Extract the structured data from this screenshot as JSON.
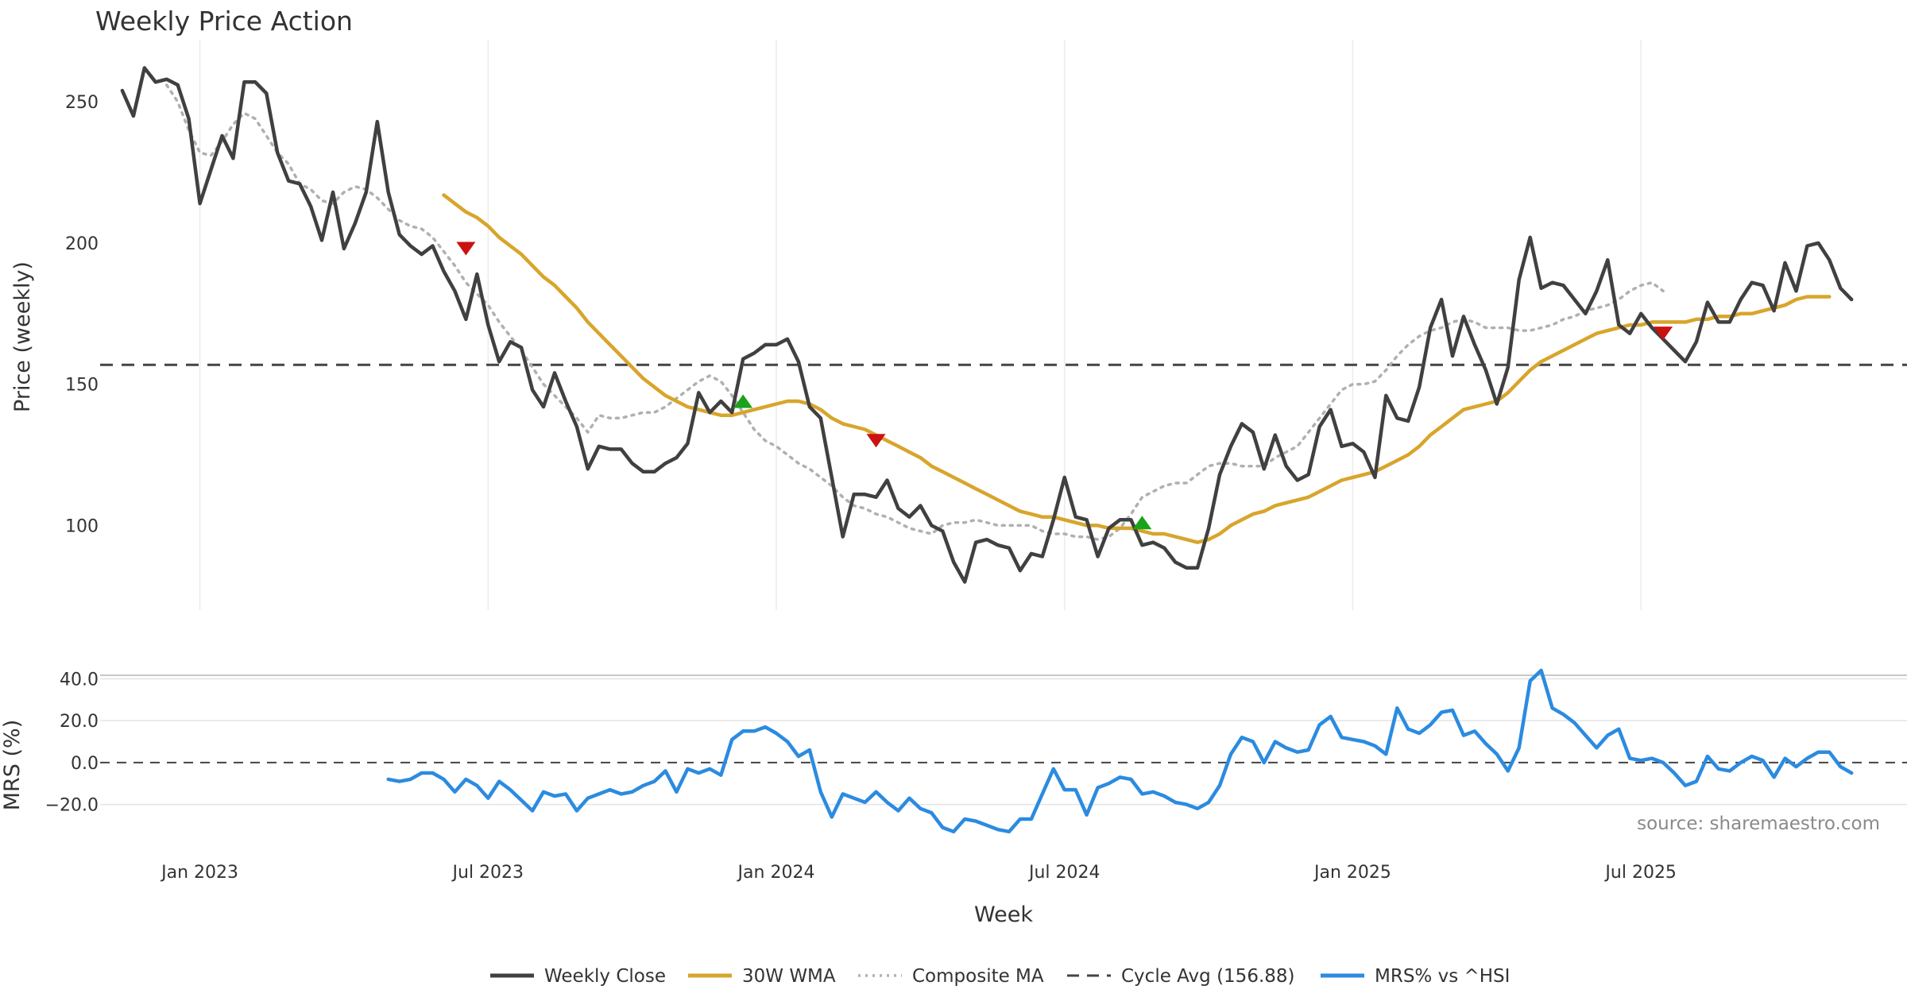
{
  "chart_data": {
    "type": "line",
    "title": "Weekly Price Action",
    "xlabel": "Week",
    "source": "source: sharemaestro.com",
    "x_ticks": [
      "Jan 2023",
      "Jul 2023",
      "Jan 2024",
      "Jul 2024",
      "Jan 2025",
      "Jul 2025"
    ],
    "x_tick_weeks": [
      7,
      33,
      59,
      85,
      111,
      137
    ],
    "x_range": [
      -2,
      161
    ],
    "price_panel": {
      "ylabel": "Price (weekly)",
      "y_ticks": [
        100,
        150,
        200,
        250
      ],
      "ylim": [
        70,
        272
      ],
      "series": [
        {
          "name": "Weekly Close",
          "color": "#404040",
          "style": "solid",
          "start_week": 0,
          "values": [
            254,
            245,
            262,
            257,
            258,
            256,
            244,
            214,
            226,
            238,
            230,
            257,
            257,
            253,
            232,
            222,
            221,
            213,
            201,
            218,
            198,
            207,
            218,
            243,
            218,
            203,
            199,
            196,
            199,
            190,
            183,
            173,
            189,
            171,
            158,
            165,
            163,
            148,
            142,
            154,
            144,
            135,
            120,
            128,
            127,
            127,
            122,
            119,
            119,
            122,
            124,
            129,
            147,
            140,
            144,
            140,
            159,
            161,
            164,
            164,
            166,
            158,
            142,
            138,
            117,
            96,
            111,
            111,
            110,
            116,
            106,
            103,
            107,
            100,
            98,
            87,
            80,
            94,
            95,
            93,
            92,
            84,
            90,
            89,
            102,
            117,
            103,
            102,
            89,
            99,
            102,
            102,
            93,
            94,
            92,
            87,
            85,
            85,
            99,
            118,
            128,
            136,
            133,
            120,
            132,
            121,
            116,
            118,
            135,
            141,
            128,
            129,
            126,
            117,
            146,
            138,
            137,
            149,
            170,
            180,
            160,
            174,
            164,
            155,
            143,
            156,
            187,
            202,
            184,
            186,
            185,
            180,
            175,
            183,
            194,
            171,
            168,
            175,
            170,
            166,
            162,
            158,
            165,
            179,
            172,
            172,
            180,
            186,
            185,
            176,
            193,
            183,
            199,
            200,
            194,
            184,
            180
          ]
        },
        {
          "name": "30W WMA",
          "color": "#d8a52c",
          "style": "solid",
          "start_week": 29,
          "values": [
            217,
            214,
            211,
            209,
            206,
            202,
            199,
            196,
            192,
            188,
            185,
            181,
            177,
            172,
            168,
            164,
            160,
            156,
            152,
            149,
            146,
            144,
            142,
            141,
            140,
            139,
            139,
            140,
            141,
            142,
            143,
            144,
            144,
            143,
            141,
            138,
            136,
            135,
            134,
            132,
            130,
            128,
            126,
            124,
            121,
            119,
            117,
            115,
            113,
            111,
            109,
            107,
            105,
            104,
            103,
            103,
            102,
            101,
            100,
            100,
            99,
            99,
            99,
            98,
            97,
            97,
            96,
            95,
            94,
            95,
            97,
            100,
            102,
            104,
            105,
            107,
            108,
            109,
            110,
            112,
            114,
            116,
            117,
            118,
            119,
            121,
            123,
            125,
            128,
            132,
            135,
            138,
            141,
            142,
            143,
            144,
            147,
            151,
            155,
            158,
            160,
            162,
            164,
            166,
            168,
            169,
            170,
            171,
            171,
            172,
            172,
            172,
            172,
            173,
            173,
            174,
            174,
            175,
            175,
            176,
            177,
            178,
            180,
            181,
            181,
            181
          ]
        },
        {
          "name": "Composite MA",
          "color": "#b0b0b0",
          "style": "dotted",
          "start_week": 4,
          "values": [
            256,
            250,
            240,
            232,
            231,
            236,
            242,
            246,
            244,
            238,
            232,
            228,
            221,
            219,
            215,
            214,
            218,
            220,
            219,
            216,
            212,
            208,
            206,
            205,
            202,
            197,
            192,
            186,
            182,
            178,
            172,
            167,
            162,
            156,
            150,
            146,
            142,
            138,
            133,
            139,
            138,
            138,
            139,
            140,
            140,
            142,
            145,
            148,
            151,
            153,
            151,
            146,
            140,
            134,
            130,
            128,
            125,
            122,
            120,
            117,
            114,
            110,
            107,
            106,
            104,
            103,
            101,
            99,
            98,
            97,
            100,
            101,
            101,
            102,
            101,
            100,
            100,
            100,
            100,
            98,
            97,
            97,
            96,
            96,
            95,
            96,
            99,
            104,
            110,
            112,
            114,
            115,
            115,
            118,
            121,
            122,
            122,
            121,
            121,
            121,
            124,
            126,
            128,
            133,
            138,
            143,
            148,
            150,
            150,
            151,
            155,
            160,
            164,
            167,
            169,
            170,
            172,
            173,
            172,
            170,
            170,
            170,
            169,
            169,
            170,
            171,
            173,
            174,
            176,
            177,
            178,
            180,
            183,
            185,
            186,
            183
          ]
        },
        {
          "name": "Cycle Avg (156.88)",
          "color": "#444444",
          "style": "dashed",
          "constant": 156.88
        }
      ],
      "markers": [
        {
          "type": "sell",
          "symbol": "down-triangle",
          "color": "#cc1111",
          "week": 31,
          "value": 198
        },
        {
          "type": "buy",
          "symbol": "up-triangle",
          "color": "#1aa31a",
          "week": 56,
          "value": 144
        },
        {
          "type": "sell",
          "symbol": "down-triangle",
          "color": "#cc1111",
          "week": 68,
          "value": 130
        },
        {
          "type": "buy",
          "symbol": "up-triangle",
          "color": "#1aa31a",
          "week": 92,
          "value": 101
        },
        {
          "type": "sell",
          "symbol": "down-triangle",
          "color": "#cc1111",
          "week": 139,
          "value": 168
        }
      ]
    },
    "mrs_panel": {
      "ylabel": "MRS (%)",
      "y_ticks": [
        -20.0,
        0.0,
        20.0,
        40.0
      ],
      "y_tick_labels": [
        "−20.0",
        "0.0",
        "20.0",
        "40.0"
      ],
      "ylim": [
        -38,
        47
      ],
      "series": [
        {
          "name": "MRS% vs ^HSI",
          "color": "#2b8be0",
          "style": "solid",
          "start_week": 24,
          "values": [
            -8,
            -9,
            -8,
            -5,
            -5,
            -8,
            -14,
            -8,
            -11,
            -17,
            -9,
            -13,
            -18,
            -23,
            -14,
            -16,
            -15,
            -23,
            -17,
            -15,
            -13,
            -15,
            -14,
            -11,
            -9,
            -4,
            -14,
            -3,
            -5,
            -3,
            -6,
            11,
            15,
            15,
            17,
            14,
            10,
            3,
            6,
            -14,
            -26,
            -15,
            -17,
            -19,
            -14,
            -19,
            -23,
            -17,
            -22,
            -24,
            -31,
            -33,
            -27,
            -28,
            -30,
            -32,
            -33,
            -27,
            -27,
            -15,
            -3,
            -13,
            -13,
            -25,
            -12,
            -10,
            -7,
            -8,
            -15,
            -14,
            -16,
            -19,
            -20,
            -22,
            -19,
            -11,
            4,
            12,
            10,
            0,
            10,
            7,
            5,
            6,
            18,
            22,
            12,
            11,
            10,
            8,
            4,
            26,
            16,
            14,
            18,
            24,
            25,
            13,
            15,
            9,
            4,
            -4,
            7,
            39,
            44,
            26,
            23,
            19,
            13,
            7,
            13,
            16,
            2,
            1,
            2,
            0,
            -5,
            -11,
            -9,
            3,
            -3,
            -4,
            0,
            3,
            1,
            -7,
            2,
            -2,
            2,
            5,
            5,
            -2,
            -5
          ]
        },
        {
          "name": "zero-line",
          "color": "#444444",
          "style": "dashed",
          "constant": 0
        }
      ]
    },
    "legend": [
      {
        "label": "Weekly Close",
        "color": "#404040",
        "style": "solid"
      },
      {
        "label": "30W WMA",
        "color": "#d8a52c",
        "style": "solid"
      },
      {
        "label": "Composite MA",
        "color": "#b0b0b0",
        "style": "dotted"
      },
      {
        "label": "Cycle Avg (156.88)",
        "color": "#444444",
        "style": "dashed"
      },
      {
        "label": "MRS% vs ^HSI",
        "color": "#2b8be0",
        "style": "solid"
      }
    ]
  }
}
